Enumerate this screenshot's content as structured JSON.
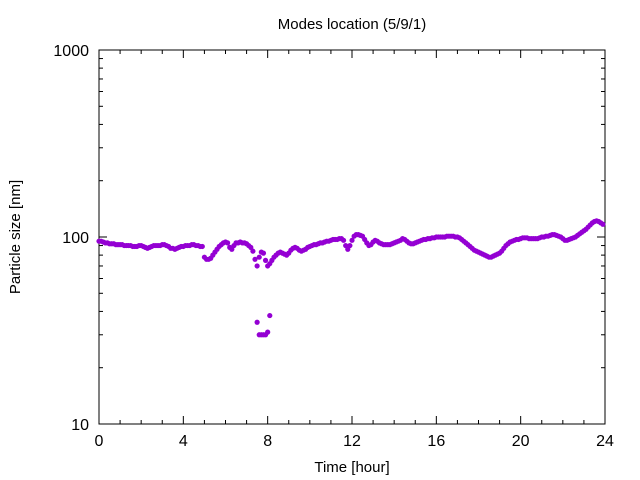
{
  "chart_data": {
    "type": "scatter",
    "title": "Modes location (5/9/1)",
    "xlabel": "Time [hour]",
    "ylabel": "Particle size [nm]",
    "xlim": [
      0,
      24
    ],
    "ylim": [
      10,
      1000
    ],
    "yscale": "log",
    "x_ticks": [
      0,
      4,
      8,
      12,
      16,
      20,
      24
    ],
    "y_ticks": [
      10,
      100,
      1000
    ],
    "grid": false,
    "marker": "filled-circle",
    "color": "#9400d3",
    "series": [
      {
        "x": [
          0.0,
          0.1,
          0.2,
          0.3,
          0.4,
          0.5,
          0.6,
          0.7,
          0.8,
          0.9,
          1.0,
          1.1,
          1.2,
          1.3,
          1.4,
          1.5,
          1.6,
          1.7,
          1.8,
          1.9,
          2.0,
          2.1,
          2.2,
          2.3,
          2.4,
          2.5,
          2.6,
          2.7,
          2.8,
          2.9,
          3.0,
          3.1,
          3.2,
          3.3,
          3.4,
          3.5,
          3.6,
          3.7,
          3.8,
          3.9,
          4.0,
          4.1,
          4.2,
          4.3,
          4.4,
          4.5,
          4.6,
          4.7,
          4.8,
          4.9,
          5.0,
          5.1,
          5.2,
          5.3,
          5.4,
          5.5,
          5.6,
          5.7,
          5.8,
          5.9,
          6.0,
          6.1,
          6.2,
          6.3,
          6.4,
          6.5,
          6.6,
          6.7,
          6.8,
          6.9,
          7.0,
          7.1,
          7.2,
          7.3,
          7.4,
          7.5,
          7.6,
          7.7,
          7.8,
          7.9,
          8.0,
          8.1,
          8.2,
          8.3,
          8.4,
          8.5,
          8.6,
          8.7,
          8.8,
          8.9,
          9.0,
          9.1,
          9.2,
          9.3,
          9.4,
          9.5,
          9.6,
          9.7,
          9.8,
          9.9,
          10.0,
          10.1,
          10.2,
          10.3,
          10.4,
          10.5,
          10.6,
          10.7,
          10.8,
          10.9,
          11.0,
          11.1,
          11.2,
          11.3,
          11.4,
          11.5,
          11.6,
          11.7,
          11.8,
          11.9,
          12.0,
          12.1,
          12.2,
          12.3,
          12.4,
          12.5,
          12.6,
          12.7,
          12.8,
          12.9,
          13.0,
          13.1,
          13.2,
          13.3,
          13.4,
          13.5,
          13.6,
          13.7,
          13.8,
          13.9,
          14.0,
          14.1,
          14.2,
          14.3,
          14.4,
          14.5,
          14.6,
          14.7,
          14.8,
          14.9,
          15.0,
          15.1,
          15.2,
          15.3,
          15.4,
          15.5,
          15.6,
          15.7,
          15.8,
          15.9,
          16.0,
          16.1,
          16.2,
          16.3,
          16.4,
          16.5,
          16.6,
          16.7,
          16.8,
          16.9,
          17.0,
          17.1,
          17.2,
          17.3,
          17.4,
          17.5,
          17.6,
          17.7,
          17.8,
          17.9,
          18.0,
          18.1,
          18.2,
          18.3,
          18.4,
          18.5,
          18.6,
          18.7,
          18.8,
          18.9,
          19.0,
          19.1,
          19.2,
          19.3,
          19.4,
          19.5,
          19.6,
          19.7,
          19.8,
          19.9,
          20.0,
          20.1,
          20.2,
          20.3,
          20.4,
          20.5,
          20.6,
          20.7,
          20.8,
          20.9,
          21.0,
          21.1,
          21.2,
          21.3,
          21.4,
          21.5,
          21.6,
          21.7,
          21.8,
          21.9,
          22.0,
          22.1,
          22.2,
          22.3,
          22.4,
          22.5,
          22.6,
          22.7,
          22.8,
          22.9,
          23.0,
          23.1,
          23.2,
          23.3,
          23.4,
          23.5,
          23.6,
          23.7,
          23.8,
          23.9,
          7.5,
          7.6,
          7.7,
          7.8,
          7.9,
          8.0,
          8.1
        ],
        "y": [
          95,
          95,
          94,
          93,
          93,
          92,
          92,
          92,
          91,
          91,
          91,
          91,
          90,
          90,
          90,
          90,
          89,
          89,
          89,
          90,
          90,
          89,
          88,
          87,
          88,
          89,
          90,
          90,
          90,
          90,
          91,
          91,
          90,
          89,
          87,
          87,
          86,
          87,
          88,
          89,
          89,
          90,
          90,
          90,
          91,
          91,
          90,
          90,
          89,
          89,
          78,
          76,
          76,
          77,
          80,
          83,
          86,
          89,
          91,
          93,
          94,
          93,
          88,
          86,
          90,
          93,
          93,
          94,
          93,
          93,
          92,
          90,
          88,
          84,
          76,
          70,
          78,
          83,
          82,
          75,
          70,
          72,
          75,
          78,
          80,
          82,
          83,
          82,
          81,
          80,
          82,
          85,
          87,
          88,
          87,
          85,
          84,
          85,
          86,
          88,
          89,
          90,
          91,
          91,
          92,
          93,
          93,
          94,
          95,
          95,
          96,
          97,
          97,
          97,
          98,
          98,
          96,
          90,
          86,
          90,
          96,
          101,
          103,
          103,
          102,
          101,
          97,
          93,
          90,
          91,
          94,
          96,
          95,
          93,
          92,
          91,
          91,
          91,
          91,
          92,
          93,
          94,
          95,
          96,
          98,
          97,
          95,
          93,
          92,
          92,
          93,
          94,
          95,
          96,
          97,
          97,
          98,
          98,
          99,
          99,
          100,
          100,
          100,
          100,
          100,
          101,
          101,
          101,
          101,
          100,
          100,
          99,
          97,
          95,
          93,
          91,
          89,
          87,
          85,
          84,
          83,
          82,
          81,
          80,
          79,
          78,
          78,
          79,
          80,
          81,
          82,
          84,
          87,
          90,
          92,
          94,
          95,
          96,
          97,
          97,
          98,
          99,
          99,
          99,
          98,
          98,
          98,
          98,
          98,
          99,
          100,
          100,
          101,
          101,
          102,
          103,
          103,
          102,
          101,
          100,
          98,
          96,
          96,
          97,
          98,
          99,
          100,
          102,
          104,
          106,
          108,
          110,
          113,
          116,
          119,
          121,
          122,
          121,
          119,
          117,
          35,
          30,
          30,
          30,
          30,
          31,
          38
        ]
      }
    ]
  }
}
